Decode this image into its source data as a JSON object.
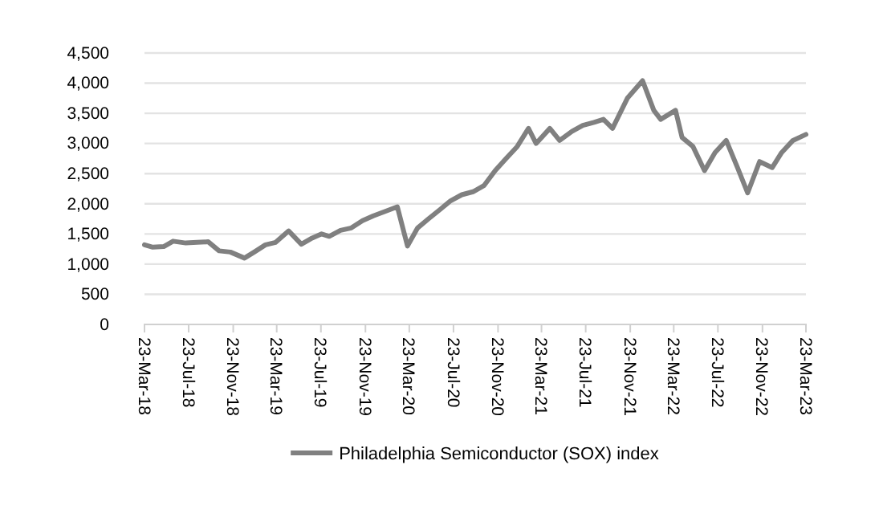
{
  "chart_data": {
    "type": "line",
    "x": [
      "2018-03-23",
      "2018-04-15",
      "2018-05-15",
      "2018-06-10",
      "2018-07-15",
      "2018-08-15",
      "2018-09-15",
      "2018-10-15",
      "2018-11-15",
      "2018-12-24",
      "2019-01-20",
      "2019-02-20",
      "2019-03-20",
      "2019-04-25",
      "2019-05-30",
      "2019-06-25",
      "2019-07-25",
      "2019-08-15",
      "2019-09-15",
      "2019-10-15",
      "2019-11-15",
      "2019-12-15",
      "2020-01-15",
      "2020-02-19",
      "2020-03-18",
      "2020-04-15",
      "2020-05-15",
      "2020-06-15",
      "2020-07-15",
      "2020-08-15",
      "2020-09-15",
      "2020-10-15",
      "2020-11-15",
      "2020-12-15",
      "2021-01-15",
      "2021-02-15",
      "2021-03-08",
      "2021-04-15",
      "2021-05-12",
      "2021-06-15",
      "2021-07-15",
      "2021-08-15",
      "2021-09-10",
      "2021-10-05",
      "2021-11-15",
      "2021-12-27",
      "2022-01-27",
      "2022-02-15",
      "2022-03-28",
      "2022-04-15",
      "2022-05-15",
      "2022-06-16",
      "2022-07-15",
      "2022-08-15",
      "2022-09-15",
      "2022-10-13",
      "2022-11-15",
      "2022-12-20",
      "2023-01-15",
      "2023-02-15",
      "2023-03-23"
    ],
    "series": [
      {
        "name": "Philadelphia Semiconductor (SOX) index",
        "color": "#808080",
        "values": [
          1320,
          1280,
          1290,
          1380,
          1350,
          1360,
          1370,
          1220,
          1200,
          1100,
          1200,
          1320,
          1360,
          1550,
          1330,
          1420,
          1500,
          1460,
          1560,
          1600,
          1720,
          1800,
          1870,
          1950,
          1300,
          1600,
          1750,
          1900,
          2050,
          2150,
          2200,
          2300,
          2550,
          2750,
          2950,
          3250,
          3000,
          3250,
          3050,
          3200,
          3300,
          3350,
          3400,
          3250,
          3750,
          4040,
          3550,
          3400,
          3550,
          3100,
          2950,
          2550,
          2850,
          3050,
          2600,
          2180,
          2700,
          2600,
          2850,
          3050,
          3150
        ]
      }
    ],
    "xlim": [
      "2018-03-23",
      "2023-03-23"
    ],
    "xticks": [
      {
        "value": "2018-03-23",
        "label": "23-Mar-18"
      },
      {
        "value": "2018-07-23",
        "label": "23-Jul-18"
      },
      {
        "value": "2018-11-23",
        "label": "23-Nov-18"
      },
      {
        "value": "2019-03-23",
        "label": "23-Mar-19"
      },
      {
        "value": "2019-07-23",
        "label": "23-Jul-19"
      },
      {
        "value": "2019-11-23",
        "label": "23-Nov-19"
      },
      {
        "value": "2020-03-23",
        "label": "23-Mar-20"
      },
      {
        "value": "2020-07-23",
        "label": "23-Jul-20"
      },
      {
        "value": "2020-11-23",
        "label": "23-Nov-20"
      },
      {
        "value": "2021-03-23",
        "label": "23-Mar-21"
      },
      {
        "value": "2021-07-23",
        "label": "23-Jul-21"
      },
      {
        "value": "2021-11-23",
        "label": "23-Nov-21"
      },
      {
        "value": "2022-03-23",
        "label": "23-Mar-22"
      },
      {
        "value": "2022-07-23",
        "label": "23-Jul-22"
      },
      {
        "value": "2022-11-23",
        "label": "23-Nov-22"
      },
      {
        "value": "2023-03-23",
        "label": "23-Mar-23"
      }
    ],
    "ylim": [
      0,
      4500
    ],
    "yticks": [
      {
        "value": 0,
        "label": "0"
      },
      {
        "value": 500,
        "label": "500"
      },
      {
        "value": 1000,
        "label": "1,000"
      },
      {
        "value": 1500,
        "label": "1,500"
      },
      {
        "value": 2000,
        "label": "2,000"
      },
      {
        "value": 2500,
        "label": "2,500"
      },
      {
        "value": 3000,
        "label": "3,000"
      },
      {
        "value": 3500,
        "label": "3,500"
      },
      {
        "value": 4000,
        "label": "4,000"
      },
      {
        "value": 4500,
        "label": "4,500"
      }
    ],
    "grid": "y",
    "legend": "bottom",
    "marker": "none",
    "line_style": "solid"
  }
}
